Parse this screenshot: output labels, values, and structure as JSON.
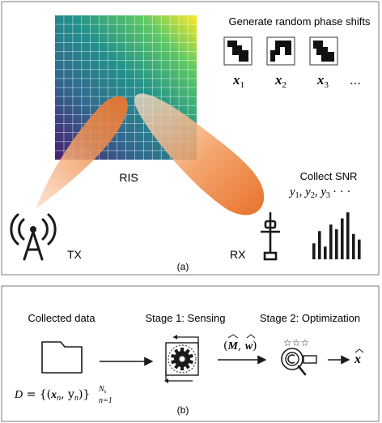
{
  "panel_a": {
    "caption": "(a)",
    "ris_label": "RIS",
    "generate_label": "Generate random phase shifts",
    "phase_labels": [
      "x",
      "x",
      "x"
    ],
    "phase_subscripts": [
      "1",
      "2",
      "3"
    ],
    "ellipsis": "…",
    "collect_label": "Collect SNR",
    "snr_y1": "y",
    "snr_sub1": "1",
    "snr_y2": "y",
    "snr_sub2": "2",
    "snr_y3": "y",
    "snr_sub3": "3",
    "snr_ellipsis": "· · ·",
    "tx_label": "TX",
    "rx_label": "RX",
    "bar_levels": [
      0.34,
      0.6,
      0.27,
      0.74,
      0.64,
      0.87,
      1.0,
      0.54,
      0.42
    ],
    "colors": {
      "beam": "#ec7a2e",
      "ris_low": "#481f70",
      "ris_mid": "#21918c",
      "ris_high": "#fde725",
      "icon": "#1a1a1a"
    }
  },
  "panel_b": {
    "caption": "(b)",
    "collected_label": "Collected data",
    "stage1_label": "Stage 1: Sensing",
    "stage2_label": "Stage 2: Optimization",
    "dataset_D": "D",
    "dataset_mid": " = {(",
    "dataset_x": "x",
    "dataset_n1": "n",
    "dataset_comma": ", y",
    "dataset_n2": "n",
    "dataset_close": ")}",
    "dataset_sup": "N",
    "dataset_sup_sub": "s",
    "dataset_sub": "n=1",
    "estimate_open": "(",
    "estimate_M": "M",
    "estimate_comma": ", ",
    "estimate_w": "w",
    "estimate_close": ")",
    "result_x": "x"
  }
}
